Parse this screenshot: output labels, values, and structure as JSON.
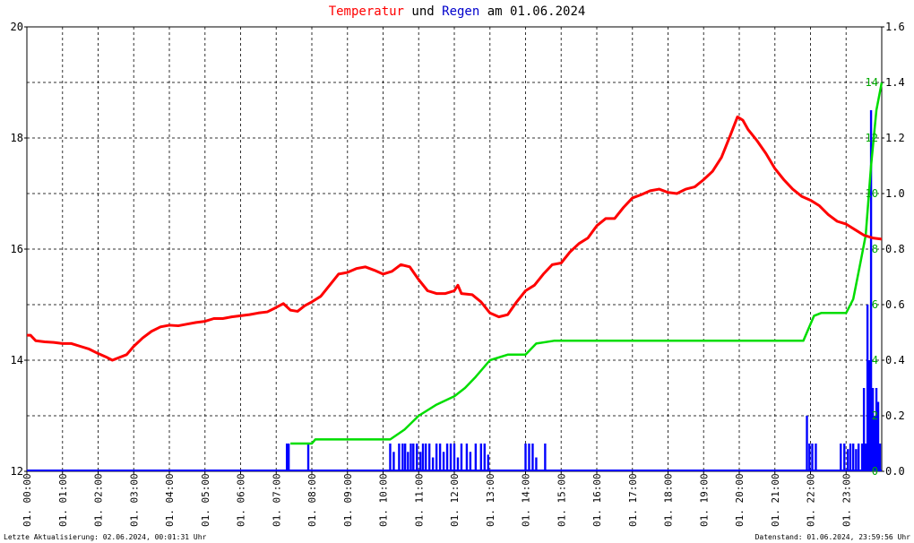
{
  "title": {
    "part1": "Temperatur",
    "part2": " und ",
    "part3": "Regen",
    "part4": " am 01.06.2024"
  },
  "footer": {
    "left": "Letzte Aktualisierung: 02.06.2024, 00:01:31 Uhr",
    "right": "Datenstand: 01.06.2024, 23:59:56 Uhr"
  },
  "colors": {
    "temperature": "#ff0000",
    "rain_intensity": "#0000ff",
    "rain_sum": "#00dd00",
    "frame": "#000000",
    "grid": "#000000",
    "right_axis_text": "#00aa00"
  },
  "chart_data": {
    "type": "line",
    "grid": true,
    "x_axis": {
      "range_hours": [
        0,
        24
      ],
      "tick_labels": [
        "01. 00:00",
        "01. 01:00",
        "01. 02:00",
        "01. 03:00",
        "01. 04:00",
        "01. 05:00",
        "01. 06:00",
        "01. 07:00",
        "01. 08:00",
        "01. 09:00",
        "01. 10:00",
        "01. 11:00",
        "01. 12:00",
        "01. 13:00",
        "01. 14:00",
        "01. 15:00",
        "01. 16:00",
        "01. 17:00",
        "01. 18:00",
        "01. 19:00",
        "01. 20:00",
        "01. 21:00",
        "01. 22:00",
        "01. 23:00"
      ]
    },
    "y_left": {
      "range": [
        12,
        20
      ],
      "tick_labels": [
        "12",
        "14",
        "16",
        "18",
        "20"
      ],
      "tick_values": [
        12,
        14,
        16,
        18,
        20
      ]
    },
    "y_right_outer": {
      "range": [
        0,
        1.6
      ],
      "tick_labels": [
        "0.0",
        "0.2",
        "0.4",
        "0.6",
        "0.8",
        "1.0",
        "1.2",
        "1.4",
        "1.6"
      ],
      "tick_values": [
        0,
        0.2,
        0.4,
        0.6,
        0.8,
        1.0,
        1.2,
        1.4,
        1.6
      ]
    },
    "y_right_inner": {
      "range": [
        0,
        16
      ],
      "tick_labels": [
        "0",
        "2",
        "4",
        "6",
        "8",
        "10",
        "12",
        "14"
      ],
      "tick_values": [
        0,
        2,
        4,
        6,
        8,
        10,
        12,
        14
      ]
    },
    "series": [
      {
        "name": "Temperatur",
        "axis": "left",
        "points": [
          [
            0.0,
            14.45
          ],
          [
            0.1,
            14.45
          ],
          [
            0.25,
            14.35
          ],
          [
            0.5,
            14.33
          ],
          [
            0.75,
            14.32
          ],
          [
            1.0,
            14.3
          ],
          [
            1.25,
            14.3
          ],
          [
            1.5,
            14.25
          ],
          [
            1.75,
            14.2
          ],
          [
            2.0,
            14.12
          ],
          [
            2.25,
            14.05
          ],
          [
            2.4,
            14.0
          ],
          [
            2.6,
            14.05
          ],
          [
            2.8,
            14.1
          ],
          [
            3.0,
            14.25
          ],
          [
            3.25,
            14.4
          ],
          [
            3.5,
            14.52
          ],
          [
            3.75,
            14.6
          ],
          [
            4.0,
            14.63
          ],
          [
            4.25,
            14.62
          ],
          [
            4.5,
            14.65
          ],
          [
            4.75,
            14.68
          ],
          [
            5.0,
            14.7
          ],
          [
            5.25,
            14.75
          ],
          [
            5.5,
            14.75
          ],
          [
            5.75,
            14.78
          ],
          [
            6.0,
            14.8
          ],
          [
            6.25,
            14.82
          ],
          [
            6.5,
            14.85
          ],
          [
            6.75,
            14.87
          ],
          [
            7.0,
            14.95
          ],
          [
            7.2,
            15.02
          ],
          [
            7.4,
            14.9
          ],
          [
            7.6,
            14.88
          ],
          [
            7.8,
            14.98
          ],
          [
            8.0,
            15.05
          ],
          [
            8.25,
            15.15
          ],
          [
            8.5,
            15.35
          ],
          [
            8.75,
            15.55
          ],
          [
            9.0,
            15.58
          ],
          [
            9.25,
            15.65
          ],
          [
            9.5,
            15.68
          ],
          [
            9.75,
            15.62
          ],
          [
            10.0,
            15.55
          ],
          [
            10.25,
            15.6
          ],
          [
            10.5,
            15.72
          ],
          [
            10.75,
            15.68
          ],
          [
            11.0,
            15.45
          ],
          [
            11.25,
            15.25
          ],
          [
            11.5,
            15.2
          ],
          [
            11.75,
            15.2
          ],
          [
            12.0,
            15.25
          ],
          [
            12.1,
            15.35
          ],
          [
            12.2,
            15.2
          ],
          [
            12.5,
            15.18
          ],
          [
            12.75,
            15.05
          ],
          [
            13.0,
            14.85
          ],
          [
            13.25,
            14.78
          ],
          [
            13.5,
            14.82
          ],
          [
            13.75,
            15.05
          ],
          [
            14.0,
            15.25
          ],
          [
            14.25,
            15.35
          ],
          [
            14.5,
            15.55
          ],
          [
            14.75,
            15.72
          ],
          [
            15.0,
            15.75
          ],
          [
            15.25,
            15.95
          ],
          [
            15.5,
            16.1
          ],
          [
            15.75,
            16.2
          ],
          [
            16.0,
            16.42
          ],
          [
            16.25,
            16.55
          ],
          [
            16.5,
            16.55
          ],
          [
            16.75,
            16.75
          ],
          [
            17.0,
            16.92
          ],
          [
            17.25,
            16.98
          ],
          [
            17.5,
            17.05
          ],
          [
            17.75,
            17.08
          ],
          [
            18.0,
            17.02
          ],
          [
            18.25,
            17.0
          ],
          [
            18.5,
            17.08
          ],
          [
            18.75,
            17.12
          ],
          [
            19.0,
            17.25
          ],
          [
            19.25,
            17.4
          ],
          [
            19.5,
            17.65
          ],
          [
            19.75,
            18.05
          ],
          [
            19.95,
            18.38
          ],
          [
            20.1,
            18.32
          ],
          [
            20.25,
            18.15
          ],
          [
            20.5,
            17.95
          ],
          [
            20.75,
            17.72
          ],
          [
            21.0,
            17.45
          ],
          [
            21.25,
            17.25
          ],
          [
            21.5,
            17.08
          ],
          [
            21.75,
            16.95
          ],
          [
            22.0,
            16.88
          ],
          [
            22.25,
            16.78
          ],
          [
            22.5,
            16.62
          ],
          [
            22.75,
            16.5
          ],
          [
            23.0,
            16.45
          ],
          [
            23.25,
            16.35
          ],
          [
            23.5,
            16.25
          ],
          [
            23.75,
            16.2
          ],
          [
            24.0,
            16.18
          ]
        ]
      },
      {
        "name": "Regen",
        "axis": "right_outer",
        "points": [
          [
            7.4,
            0.1
          ],
          [
            8.0,
            0.1
          ],
          [
            8.1,
            0.115
          ],
          [
            10.2,
            0.115
          ],
          [
            10.6,
            0.15
          ],
          [
            11.0,
            0.2
          ],
          [
            11.5,
            0.24
          ],
          [
            12.0,
            0.27
          ],
          [
            12.3,
            0.3
          ],
          [
            12.6,
            0.34
          ],
          [
            13.0,
            0.4
          ],
          [
            13.5,
            0.42
          ],
          [
            14.0,
            0.42
          ],
          [
            14.3,
            0.46
          ],
          [
            14.8,
            0.47
          ],
          [
            18.0,
            0.47
          ],
          [
            21.5,
            0.47
          ],
          [
            21.8,
            0.47
          ],
          [
            22.1,
            0.56
          ],
          [
            22.3,
            0.57
          ],
          [
            23.0,
            0.57
          ],
          [
            23.2,
            0.62
          ],
          [
            23.4,
            0.75
          ],
          [
            23.55,
            0.85
          ],
          [
            23.7,
            1.1
          ],
          [
            23.85,
            1.3
          ],
          [
            24.0,
            1.4
          ]
        ]
      }
    ],
    "bars": {
      "name": "Regen",
      "axis": "right_outer",
      "width_hours": 0.06,
      "points": [
        [
          7.3,
          0.1
        ],
        [
          7.35,
          0.1
        ],
        [
          7.9,
          0.1
        ],
        [
          10.2,
          0.1
        ],
        [
          10.3,
          0.07
        ],
        [
          10.45,
          0.1
        ],
        [
          10.55,
          0.1
        ],
        [
          10.62,
          0.1
        ],
        [
          10.7,
          0.07
        ],
        [
          10.78,
          0.1
        ],
        [
          10.85,
          0.1
        ],
        [
          10.95,
          0.1
        ],
        [
          11.05,
          0.07
        ],
        [
          11.12,
          0.1
        ],
        [
          11.2,
          0.1
        ],
        [
          11.3,
          0.1
        ],
        [
          11.4,
          0.05
        ],
        [
          11.5,
          0.1
        ],
        [
          11.6,
          0.1
        ],
        [
          11.7,
          0.07
        ],
        [
          11.8,
          0.1
        ],
        [
          11.9,
          0.1
        ],
        [
          12.0,
          0.1
        ],
        [
          12.1,
          0.05
        ],
        [
          12.2,
          0.1
        ],
        [
          12.35,
          0.1
        ],
        [
          12.45,
          0.07
        ],
        [
          12.6,
          0.1
        ],
        [
          12.75,
          0.1
        ],
        [
          12.85,
          0.1
        ],
        [
          12.95,
          0.06
        ],
        [
          14.0,
          0.1
        ],
        [
          14.1,
          0.1
        ],
        [
          14.2,
          0.1
        ],
        [
          14.3,
          0.05
        ],
        [
          14.55,
          0.1
        ],
        [
          21.9,
          0.2
        ],
        [
          21.97,
          0.1
        ],
        [
          22.05,
          0.1
        ],
        [
          22.15,
          0.1
        ],
        [
          22.85,
          0.1
        ],
        [
          22.95,
          0.1
        ],
        [
          23.05,
          0.08
        ],
        [
          23.12,
          0.1
        ],
        [
          23.2,
          0.1
        ],
        [
          23.28,
          0.08
        ],
        [
          23.35,
          0.1
        ],
        [
          23.45,
          0.1
        ],
        [
          23.5,
          0.3
        ],
        [
          23.55,
          0.1
        ],
        [
          23.6,
          0.6
        ],
        [
          23.65,
          0.4
        ],
        [
          23.7,
          1.3
        ],
        [
          23.75,
          0.3
        ],
        [
          23.8,
          0.2
        ],
        [
          23.85,
          0.3
        ],
        [
          23.9,
          0.25
        ],
        [
          23.95,
          0.1
        ]
      ]
    }
  }
}
